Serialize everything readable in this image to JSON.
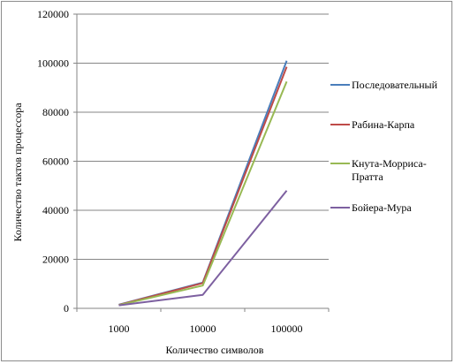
{
  "chart_data": {
    "type": "line",
    "categories": [
      "1000",
      "10000",
      "100000"
    ],
    "series": [
      {
        "name": "Последовательный",
        "values": [
          1500,
          10500,
          101000
        ],
        "color": "#4a7ebb"
      },
      {
        "name": "Рабина-Карпа",
        "values": [
          1400,
          10300,
          98500
        ],
        "color": "#be4b48"
      },
      {
        "name": "Кнута-Морриса-Пратта",
        "values": [
          1300,
          9300,
          92500
        ],
        "color": "#98b954"
      },
      {
        "name": "Бойера-Мура",
        "values": [
          1200,
          5500,
          48000
        ],
        "color": "#7d60a0"
      }
    ],
    "xlabel": "Количество символов",
    "ylabel": "Количество тактов процессора",
    "ylim": [
      0,
      120000
    ],
    "yticks": [
      0,
      20000,
      40000,
      60000,
      80000,
      100000,
      120000
    ],
    "grid": true,
    "legend": "right"
  }
}
